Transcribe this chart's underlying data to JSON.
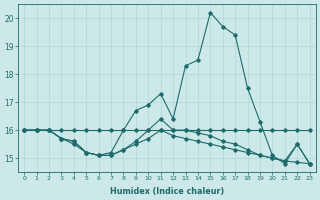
{
  "xlabel": "Humidex (Indice chaleur)",
  "xlim": [
    -0.5,
    23.5
  ],
  "ylim": [
    14.5,
    20.5
  ],
  "yticks": [
    15,
    16,
    17,
    18,
    19,
    20
  ],
  "xticks": [
    0,
    1,
    2,
    3,
    4,
    5,
    6,
    7,
    8,
    9,
    10,
    11,
    12,
    13,
    14,
    15,
    16,
    17,
    18,
    19,
    20,
    21,
    22,
    23
  ],
  "bg_color": "#cde8e8",
  "grid_color": "#b0d8d8",
  "line_color": "#1e6b6b",
  "lines": [
    [
      16.0,
      16.0,
      16.0,
      16.0,
      16.0,
      16.0,
      16.0,
      16.0,
      16.0,
      16.0,
      16.0,
      16.0,
      16.0,
      16.0,
      16.0,
      16.0,
      16.0,
      16.0,
      16.0,
      16.0,
      16.0,
      16.0,
      16.0,
      16.0
    ],
    [
      16.0,
      16.0,
      16.0,
      15.7,
      15.6,
      15.2,
      15.1,
      15.1,
      15.3,
      15.5,
      15.7,
      16.0,
      15.8,
      15.7,
      15.6,
      15.5,
      15.4,
      15.3,
      15.2,
      15.1,
      15.0,
      14.9,
      14.85,
      14.8
    ],
    [
      16.0,
      16.0,
      16.0,
      15.7,
      15.6,
      15.2,
      15.1,
      15.1,
      15.3,
      15.6,
      16.0,
      16.4,
      16.0,
      16.0,
      15.9,
      15.8,
      15.6,
      15.5,
      15.3,
      15.1,
      15.0,
      14.9,
      15.5,
      14.8
    ],
    [
      16.0,
      16.0,
      16.0,
      15.7,
      15.5,
      15.2,
      15.1,
      15.2,
      16.0,
      16.7,
      16.9,
      17.3,
      16.4,
      18.3,
      18.5,
      20.2,
      19.7,
      19.4,
      17.5,
      16.3,
      15.1,
      14.8,
      15.5,
      14.8
    ]
  ]
}
